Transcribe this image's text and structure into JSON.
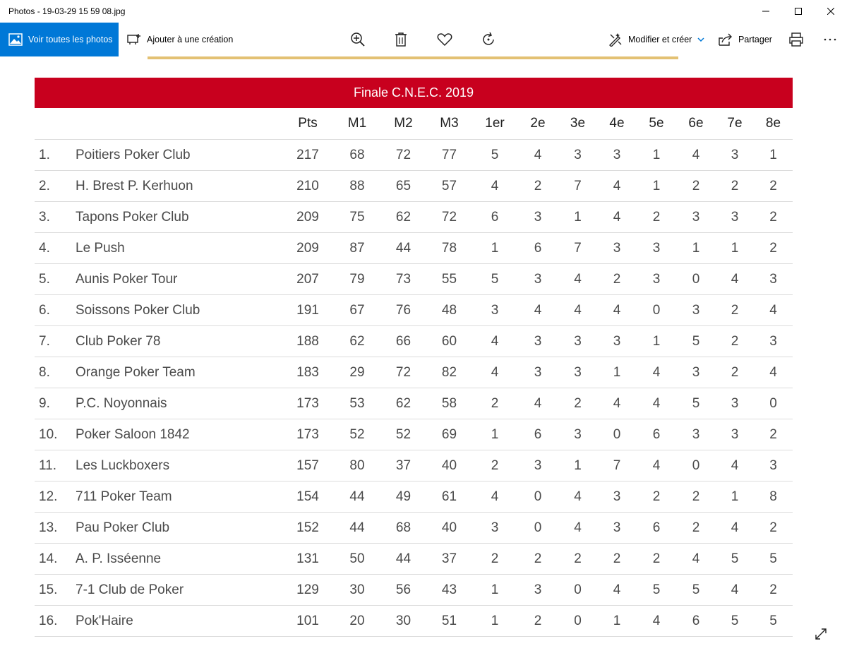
{
  "window": {
    "title": "Photos - 19-03-29 15 59 08.jpg"
  },
  "toolbar": {
    "view_all_label": "Voir toutes les photos",
    "add_creation_label": "Ajouter à une création",
    "edit_create_label": "Modifier et créer",
    "share_label": "Partager",
    "accent_color": "#0078d7"
  },
  "table": {
    "banner_title": "Finale C.N.E.C. 2019",
    "banner_color": "#c8001e",
    "headers": [
      "",
      "",
      "Pts",
      "M1",
      "M2",
      "M3",
      "1er",
      "2e",
      "3e",
      "4e",
      "5e",
      "6e",
      "7e",
      "8e"
    ],
    "rows": [
      [
        "1.",
        "Poitiers Poker Club",
        "217",
        "68",
        "72",
        "77",
        "5",
        "4",
        "3",
        "3",
        "1",
        "4",
        "3",
        "1"
      ],
      [
        "2.",
        "H. Brest P. Kerhuon",
        "210",
        "88",
        "65",
        "57",
        "4",
        "2",
        "7",
        "4",
        "1",
        "2",
        "2",
        "2"
      ],
      [
        "3.",
        "Tapons Poker Club",
        "209",
        "75",
        "62",
        "72",
        "6",
        "3",
        "1",
        "4",
        "2",
        "3",
        "3",
        "2"
      ],
      [
        "4.",
        "Le Push",
        "209",
        "87",
        "44",
        "78",
        "1",
        "6",
        "7",
        "3",
        "3",
        "1",
        "1",
        "2"
      ],
      [
        "5.",
        "Aunis Poker Tour",
        "207",
        "79",
        "73",
        "55",
        "5",
        "3",
        "4",
        "2",
        "3",
        "0",
        "4",
        "3"
      ],
      [
        "6.",
        "Soissons Poker Club",
        "191",
        "67",
        "76",
        "48",
        "3",
        "4",
        "4",
        "4",
        "0",
        "3",
        "2",
        "4"
      ],
      [
        "7.",
        "Club Poker 78",
        "188",
        "62",
        "66",
        "60",
        "4",
        "3",
        "3",
        "3",
        "1",
        "5",
        "2",
        "3"
      ],
      [
        "8.",
        "Orange Poker Team",
        "183",
        "29",
        "72",
        "82",
        "4",
        "3",
        "3",
        "1",
        "4",
        "3",
        "2",
        "4"
      ],
      [
        "9.",
        "P.C. Noyonnais",
        "173",
        "53",
        "62",
        "58",
        "2",
        "4",
        "2",
        "4",
        "4",
        "5",
        "3",
        "0"
      ],
      [
        "10.",
        "Poker Saloon 1842",
        "173",
        "52",
        "52",
        "69",
        "1",
        "6",
        "3",
        "0",
        "6",
        "3",
        "3",
        "2"
      ],
      [
        "11.",
        "Les Luckboxers",
        "157",
        "80",
        "37",
        "40",
        "2",
        "3",
        "1",
        "7",
        "4",
        "0",
        "4",
        "3"
      ],
      [
        "12.",
        "711 Poker Team",
        "154",
        "44",
        "49",
        "61",
        "4",
        "0",
        "4",
        "3",
        "2",
        "2",
        "1",
        "8"
      ],
      [
        "13.",
        "Pau Poker Club",
        "152",
        "44",
        "68",
        "40",
        "3",
        "0",
        "4",
        "3",
        "6",
        "2",
        "4",
        "2"
      ],
      [
        "14.",
        "A. P. Isséenne",
        "131",
        "50",
        "44",
        "37",
        "2",
        "2",
        "2",
        "2",
        "2",
        "4",
        "5",
        "5"
      ],
      [
        "15.",
        "7-1 Club de Poker",
        "129",
        "30",
        "56",
        "43",
        "1",
        "3",
        "0",
        "4",
        "5",
        "5",
        "4",
        "2"
      ],
      [
        "16.",
        "Pok'Haire",
        "101",
        "20",
        "30",
        "51",
        "1",
        "2",
        "0",
        "1",
        "4",
        "6",
        "5",
        "5"
      ]
    ]
  }
}
